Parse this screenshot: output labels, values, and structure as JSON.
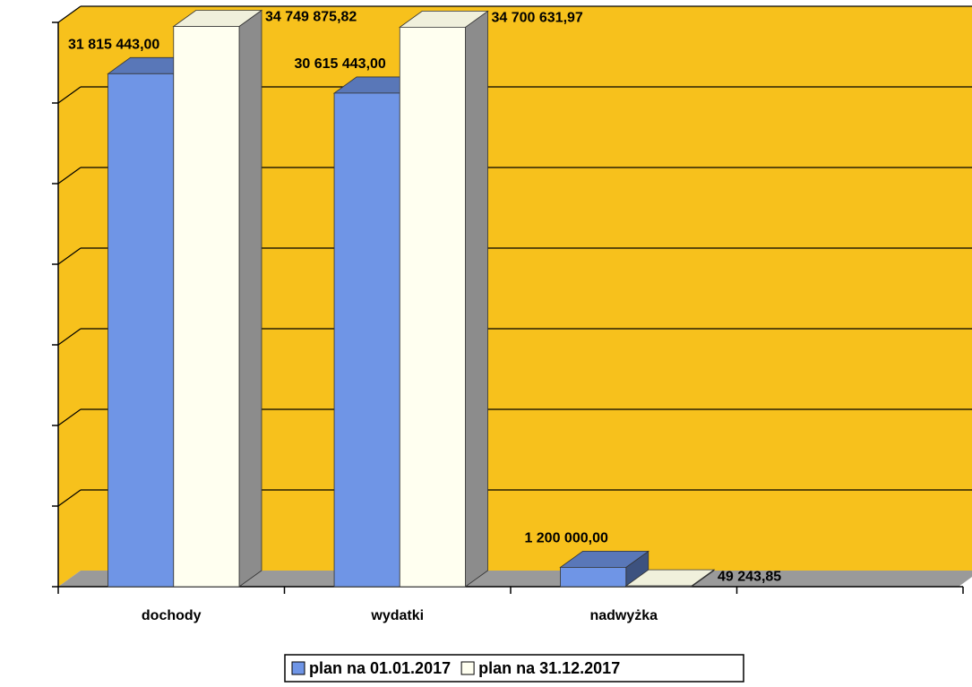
{
  "chart_data": {
    "type": "bar3d",
    "categories": [
      "dochody",
      "wydatki",
      "nadwyżka",
      null
    ],
    "series": [
      {
        "name": "plan na 01.01.2017",
        "color": "#6f95e6",
        "values": [
          31815443.0,
          30615443.0,
          1200000.0,
          null
        ],
        "value_labels": [
          "31 815 443,00",
          "30 615 443,00",
          "1 200 000,00",
          null
        ]
      },
      {
        "name": "plan na 31.12.2017",
        "color": "#fffff0",
        "values": [
          34749875.82,
          34700631.97,
          49243.85,
          null
        ],
        "value_labels": [
          "34 749 875,82",
          "34 700 631,97",
          "49 243,85",
          null
        ]
      }
    ],
    "ylim": [
      0,
      35000000
    ],
    "yticks": [
      0,
      5000000,
      10000000,
      15000000,
      20000000,
      25000000,
      30000000,
      35000000
    ],
    "grid": true,
    "legend": "bottom"
  }
}
